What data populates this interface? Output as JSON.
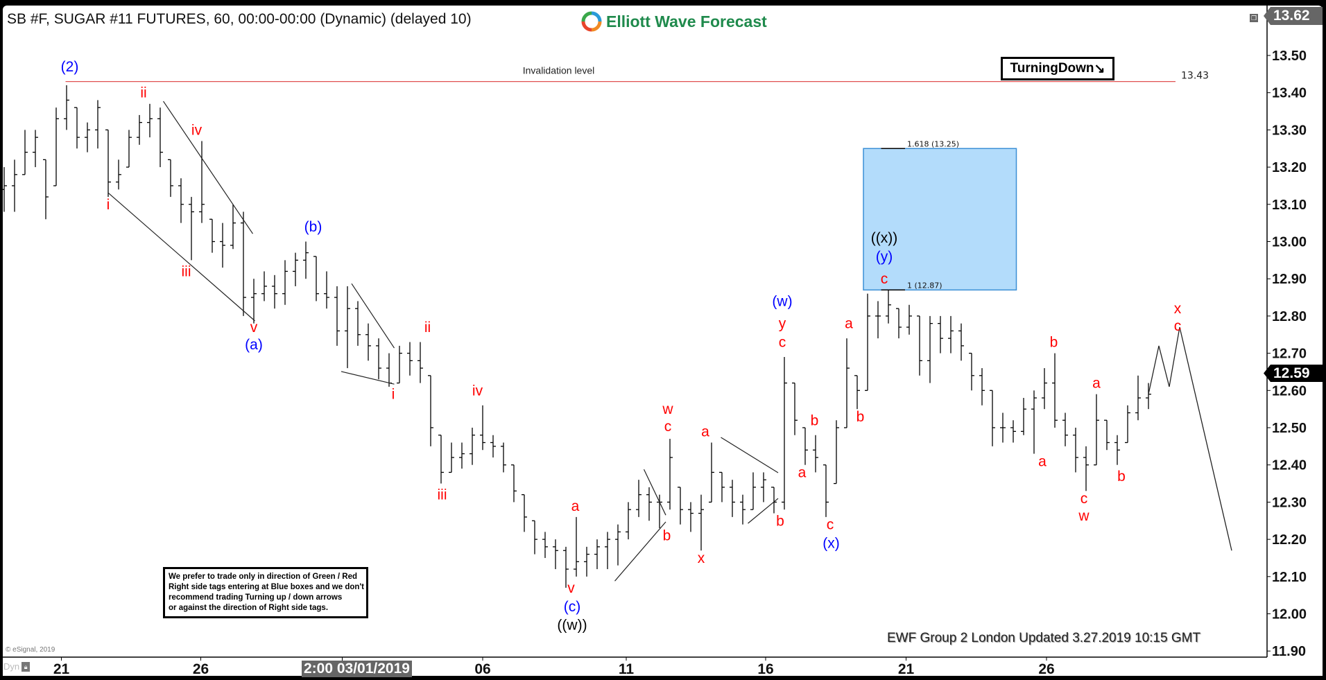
{
  "header": {
    "title": "SB #F, SUGAR #11 FUTURES, 60, 00:00-00:00 (Dynamic) (delayed 10)",
    "logo_text": "Elliott Wave Forecast"
  },
  "tags": {
    "turning": "TurningDown",
    "turning_arrow": "↘"
  },
  "note_lines": [
    "We prefer to trade only in direction of Green / Red",
    "Right side tags entering at Blue boxes and we don't",
    "recommend trading Turning up / down arrows",
    "or against the direction of Right side tags."
  ],
  "footer": {
    "updated": "EWF Group 2 London Updated 3.27.2019 10:15 GMT",
    "copyright": "© eSignal, 2019",
    "dyn": "Dyn",
    "crosshair_date": "2:00 03/01/2019"
  },
  "price_badges": {
    "top": "13.62",
    "last": "12.59"
  },
  "colors": {
    "wave_red": "#ff0000",
    "wave_blue": "#0000ff",
    "wave_black": "#000000",
    "invalidation": "#e05050",
    "fib_box": "#b3dcfb",
    "fib_border": "#3b8fd6",
    "logo_green": "#1f8a4c"
  },
  "chart_data": {
    "type": "ohlc",
    "ylim": [
      11.85,
      13.62
    ],
    "y_ticks": [
      "13.50",
      "13.40",
      "13.30",
      "13.20",
      "13.10",
      "13.00",
      "12.90",
      "12.80",
      "12.70",
      "12.60",
      "12.50",
      "12.40",
      "12.30",
      "12.20",
      "12.10",
      "12.00",
      "11.90"
    ],
    "x_ticks": [
      {
        "label": "21",
        "index": 5.5
      },
      {
        "label": "26",
        "index": 18.9
      },
      {
        "label": "03/01/2019",
        "index": 32.5
      },
      {
        "label": "06",
        "index": 46
      },
      {
        "label": "11",
        "index": 59.8
      },
      {
        "label": "16",
        "index": 73.2
      },
      {
        "label": "21",
        "index": 86.7
      },
      {
        "label": "26",
        "index": 100.2
      }
    ],
    "bars_hlc": [
      [
        13.2,
        13.08,
        13.15
      ],
      [
        13.22,
        13.08,
        13.18
      ],
      [
        13.3,
        13.18,
        13.24
      ],
      [
        13.3,
        13.2,
        13.28
      ],
      [
        13.22,
        13.06,
        13.12
      ],
      [
        13.36,
        13.15,
        13.33
      ],
      [
        13.42,
        13.3,
        13.38
      ],
      [
        13.36,
        13.25,
        13.28
      ],
      [
        13.32,
        13.24,
        13.3
      ],
      [
        13.38,
        13.25,
        13.36
      ],
      [
        13.3,
        13.12,
        13.16
      ],
      [
        13.22,
        13.14,
        13.18
      ],
      [
        13.3,
        13.2,
        13.28
      ],
      [
        13.34,
        13.26,
        13.32
      ],
      [
        13.37,
        13.28,
        13.33
      ],
      [
        13.36,
        13.2,
        13.24
      ],
      [
        13.22,
        13.12,
        13.15
      ],
      [
        13.17,
        13.05,
        13.1
      ],
      [
        13.12,
        12.95,
        13.08
      ],
      [
        13.27,
        13.05,
        13.1
      ],
      [
        13.06,
        12.97,
        13.0
      ],
      [
        13.05,
        12.93,
        12.99
      ],
      [
        13.1,
        12.98,
        13.05
      ],
      [
        13.08,
        12.8,
        12.85
      ],
      [
        12.9,
        12.78,
        12.86
      ],
      [
        12.92,
        12.84,
        12.88
      ],
      [
        12.91,
        12.82,
        12.86
      ],
      [
        12.95,
        12.83,
        12.92
      ],
      [
        12.97,
        12.88,
        12.95
      ],
      [
        13.0,
        12.9,
        12.97
      ],
      [
        12.96,
        12.84,
        12.86
      ],
      [
        12.92,
        12.82,
        12.85
      ],
      [
        12.88,
        12.72,
        12.76
      ],
      [
        12.88,
        12.66,
        12.82
      ],
      [
        12.84,
        12.72,
        12.75
      ],
      [
        12.78,
        12.68,
        12.72
      ],
      [
        12.74,
        12.63,
        12.66
      ],
      [
        12.7,
        12.61,
        12.62
      ],
      [
        12.72,
        12.62,
        12.7
      ],
      [
        12.73,
        12.64,
        12.68
      ],
      [
        12.73,
        12.62,
        12.66
      ],
      [
        12.64,
        12.45,
        12.5
      ],
      [
        12.48,
        12.35,
        12.38
      ],
      [
        12.46,
        12.38,
        12.42
      ],
      [
        12.46,
        12.39,
        12.43
      ],
      [
        12.5,
        12.4,
        12.48
      ],
      [
        12.56,
        12.44,
        12.46
      ],
      [
        12.48,
        12.42,
        12.45
      ],
      [
        12.46,
        12.38,
        12.4
      ],
      [
        12.4,
        12.3,
        12.33
      ],
      [
        12.32,
        12.22,
        12.26
      ],
      [
        12.25,
        12.16,
        12.2
      ],
      [
        12.22,
        12.15,
        12.18
      ],
      [
        12.2,
        12.12,
        12.17
      ],
      [
        12.18,
        12.07,
        12.12
      ],
      [
        12.26,
        12.1,
        12.14
      ],
      [
        12.18,
        12.1,
        12.16
      ],
      [
        12.2,
        12.12,
        12.18
      ],
      [
        12.22,
        12.12,
        12.2
      ],
      [
        12.24,
        12.13,
        12.22
      ],
      [
        12.3,
        12.2,
        12.28
      ],
      [
        12.36,
        12.26,
        12.32
      ],
      [
        12.34,
        12.25,
        12.3
      ],
      [
        12.32,
        12.23,
        12.3
      ],
      [
        12.47,
        12.28,
        12.42
      ],
      [
        12.34,
        12.24,
        12.28
      ],
      [
        12.3,
        12.22,
        12.27
      ],
      [
        12.32,
        12.17,
        12.28
      ],
      [
        12.46,
        12.3,
        12.38
      ],
      [
        12.38,
        12.3,
        12.34
      ],
      [
        12.36,
        12.26,
        12.3
      ],
      [
        12.32,
        12.24,
        12.28
      ],
      [
        12.38,
        12.28,
        12.34
      ],
      [
        12.38,
        12.3,
        12.36
      ],
      [
        12.34,
        12.27,
        12.3
      ],
      [
        12.69,
        12.28,
        12.62
      ],
      [
        12.62,
        12.48,
        12.52
      ],
      [
        12.5,
        12.4,
        12.44
      ],
      [
        12.48,
        12.38,
        12.42
      ],
      [
        12.4,
        12.26,
        12.3
      ],
      [
        12.52,
        12.35,
        12.5
      ],
      [
        12.74,
        12.5,
        12.66
      ],
      [
        12.64,
        12.55,
        12.6
      ],
      [
        12.86,
        12.6,
        12.8
      ],
      [
        12.84,
        12.74,
        12.8
      ],
      [
        12.87,
        12.78,
        12.83
      ],
      [
        12.82,
        12.74,
        12.77
      ],
      [
        12.83,
        12.75,
        12.8
      ],
      [
        12.8,
        12.64,
        12.68
      ],
      [
        12.8,
        12.62,
        12.78
      ],
      [
        12.8,
        12.7,
        12.74
      ],
      [
        12.8,
        12.7,
        12.76
      ],
      [
        12.78,
        12.68,
        12.72
      ],
      [
        12.7,
        12.6,
        12.64
      ],
      [
        12.66,
        12.56,
        12.6
      ],
      [
        12.6,
        12.45,
        12.5
      ],
      [
        12.54,
        12.46,
        12.5
      ],
      [
        12.52,
        12.46,
        12.49
      ],
      [
        12.58,
        12.48,
        12.55
      ],
      [
        12.6,
        12.43,
        12.58
      ],
      [
        12.66,
        12.55,
        12.62
      ],
      [
        12.7,
        12.5,
        12.52
      ],
      [
        12.54,
        12.45,
        12.48
      ],
      [
        12.5,
        12.38,
        12.42
      ],
      [
        12.45,
        12.33,
        12.4
      ],
      [
        12.59,
        12.4,
        12.52
      ],
      [
        12.52,
        12.44,
        12.46
      ],
      [
        12.48,
        12.4,
        12.44
      ],
      [
        12.56,
        12.46,
        12.54
      ],
      [
        12.64,
        12.52,
        12.58
      ],
      [
        12.62,
        12.55,
        12.59
      ]
    ],
    "projection": [
      [
        110,
        12.59
      ],
      [
        111,
        12.72
      ],
      [
        112,
        12.61
      ],
      [
        113,
        12.77
      ],
      [
        118,
        12.17
      ]
    ],
    "invalidation": {
      "price": 13.43,
      "label": "13.43",
      "text": "Invalidation level",
      "from_index": 5.9,
      "to_index": 112.6
    },
    "fib_box": {
      "low": 12.87,
      "high": 13.25,
      "from_index": 82.6,
      "to_index": 97.3,
      "levels": [
        {
          "price": 13.25,
          "label": "1.618 (13.25)"
        },
        {
          "price": 12.87,
          "label": "1 (12.87)"
        }
      ]
    },
    "trendlines": [
      [
        [
          15.3,
          13.377
        ],
        [
          23.9,
          13.021
        ]
      ],
      [
        [
          10,
          13.131
        ],
        [
          24.1,
          12.787
        ]
      ],
      [
        [
          33.4,
          12.887
        ],
        [
          37.5,
          12.714
        ]
      ],
      [
        [
          32.4,
          12.651
        ],
        [
          37.5,
          12.617
        ]
      ],
      [
        [
          58.7,
          12.088
        ],
        [
          63.6,
          12.247
        ]
      ],
      [
        [
          61.5,
          12.388
        ],
        [
          63.6,
          12.265
        ]
      ],
      [
        [
          68.9,
          12.474
        ],
        [
          74.4,
          12.379
        ]
      ],
      [
        [
          71.5,
          12.243
        ],
        [
          74.4,
          12.31
        ]
      ]
    ],
    "wave_labels": [
      {
        "text": "(2)",
        "index": 6.3,
        "price": 13.47,
        "color": "blue"
      },
      {
        "text": "ii",
        "index": 13.4,
        "price": 13.4,
        "color": "red"
      },
      {
        "text": "i",
        "index": 10,
        "price": 13.1,
        "color": "red"
      },
      {
        "text": "iv",
        "index": 18.5,
        "price": 13.3,
        "color": "red"
      },
      {
        "text": "iii",
        "index": 17.5,
        "price": 12.92,
        "color": "red"
      },
      {
        "text": "v",
        "index": 24,
        "price": 12.77,
        "color": "red"
      },
      {
        "text": "(a)",
        "index": 24,
        "price": 12.73,
        "color": "blue"
      },
      {
        "text": "(b)",
        "index": 29.7,
        "price": 13.04,
        "color": "blue"
      },
      {
        "text": "i",
        "index": 37.4,
        "price": 12.59,
        "color": "red"
      },
      {
        "text": "ii",
        "index": 40.7,
        "price": 12.77,
        "color": "red"
      },
      {
        "text": "iv",
        "index": 45.5,
        "price": 12.6,
        "color": "red"
      },
      {
        "text": "iii",
        "index": 42.1,
        "price": 12.32,
        "color": "red"
      },
      {
        "text": "a",
        "index": 54.9,
        "price": 12.29,
        "color": "red"
      },
      {
        "text": "v",
        "index": 54.5,
        "price": 12.07,
        "color": "red"
      },
      {
        "text": "(c)",
        "index": 54.6,
        "price": 12.02,
        "color": "blue"
      },
      {
        "text": "((w))",
        "index": 54.6,
        "price": 11.97,
        "color": "black"
      },
      {
        "text": "w",
        "index": 63.8,
        "price": 12.55,
        "color": "red"
      },
      {
        "text": "c",
        "index": 63.8,
        "price": 12.51,
        "color": "red"
      },
      {
        "text": "b",
        "index": 63.7,
        "price": 12.21,
        "color": "red"
      },
      {
        "text": "x",
        "index": 67,
        "price": 12.15,
        "color": "red"
      },
      {
        "text": "a",
        "index": 67.4,
        "price": 12.49,
        "color": "red"
      },
      {
        "text": "b",
        "index": 74.6,
        "price": 12.25,
        "color": "red"
      },
      {
        "text": "(w)",
        "index": 74.8,
        "price": 12.84,
        "color": "blue"
      },
      {
        "text": "y",
        "index": 74.8,
        "price": 12.78,
        "color": "red"
      },
      {
        "text": "c",
        "index": 74.8,
        "price": 12.73,
        "color": "red"
      },
      {
        "text": "a",
        "index": 76.7,
        "price": 12.38,
        "color": "red"
      },
      {
        "text": "b",
        "index": 77.9,
        "price": 12.52,
        "color": "red"
      },
      {
        "text": "c",
        "index": 79.4,
        "price": 12.24,
        "color": "red"
      },
      {
        "text": "(x)",
        "index": 79.5,
        "price": 12.19,
        "color": "blue"
      },
      {
        "text": "a",
        "index": 81.2,
        "price": 12.78,
        "color": "red"
      },
      {
        "text": "b",
        "index": 82.3,
        "price": 12.53,
        "color": "red"
      },
      {
        "text": "((x))",
        "index": 84.6,
        "price": 13.01,
        "color": "black"
      },
      {
        "text": "(y)",
        "index": 84.6,
        "price": 12.96,
        "color": "blue"
      },
      {
        "text": "c",
        "index": 84.6,
        "price": 12.9,
        "color": "red"
      },
      {
        "text": "b",
        "index": 100.9,
        "price": 12.73,
        "color": "red"
      },
      {
        "text": "a",
        "index": 99.8,
        "price": 12.41,
        "color": "red"
      },
      {
        "text": "a",
        "index": 105,
        "price": 12.62,
        "color": "red"
      },
      {
        "text": "c",
        "index": 103.8,
        "price": 12.31,
        "color": "red"
      },
      {
        "text": "w",
        "index": 103.8,
        "price": 12.27,
        "color": "red"
      },
      {
        "text": "b",
        "index": 107.4,
        "price": 12.37,
        "color": "red"
      },
      {
        "text": "x",
        "index": 112.8,
        "price": 12.82,
        "color": "red"
      },
      {
        "text": "c",
        "index": 112.8,
        "price": 12.79,
        "color": "red"
      }
    ]
  }
}
